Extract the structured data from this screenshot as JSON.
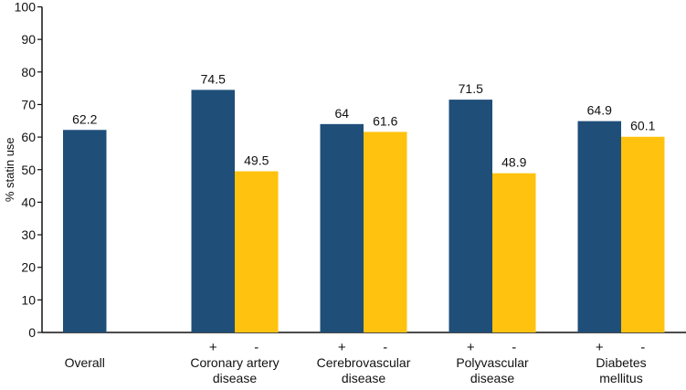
{
  "chart_data": {
    "type": "bar",
    "title": "",
    "xlabel": "",
    "ylabel": "% statin use",
    "ylim": [
      0,
      100
    ],
    "yticks": [
      0,
      10,
      20,
      30,
      40,
      50,
      60,
      70,
      80,
      90,
      100
    ],
    "grid": false,
    "groups": [
      {
        "label": "Overall",
        "bars": [
          {
            "sub": "",
            "value": 62.2,
            "label": "62.2",
            "series": "positive"
          }
        ]
      },
      {
        "label": "Coronary artery disease",
        "bars": [
          {
            "sub": "+",
            "value": 74.5,
            "label": "74.5",
            "series": "positive"
          },
          {
            "sub": "-",
            "value": 49.5,
            "label": "49.5",
            "series": "negative"
          }
        ]
      },
      {
        "label": "Cerebrovascular disease",
        "bars": [
          {
            "sub": "+",
            "value": 64,
            "label": "64",
            "series": "positive"
          },
          {
            "sub": "-",
            "value": 61.6,
            "label": "61.6",
            "series": "negative"
          }
        ]
      },
      {
        "label": "Polyvascular disease",
        "bars": [
          {
            "sub": "+",
            "value": 71.5,
            "label": "71.5",
            "series": "positive"
          },
          {
            "sub": "-",
            "value": 48.9,
            "label": "48.9",
            "series": "negative"
          }
        ]
      },
      {
        "label": "Diabetes mellitus",
        "bars": [
          {
            "sub": "+",
            "value": 64.9,
            "label": "64.9",
            "series": "positive"
          },
          {
            "sub": "-",
            "value": 60.1,
            "label": "60.1",
            "series": "negative"
          }
        ]
      }
    ],
    "group_label_lines": [
      [
        "Overall"
      ],
      [
        "Coronary artery",
        "disease"
      ],
      [
        "Cerebrovascular",
        "disease"
      ],
      [
        "Polyvascular",
        "disease"
      ],
      [
        "Diabetes",
        "mellitus"
      ]
    ],
    "colors": {
      "positive": "#1f4e79",
      "negative": "#ffc20e"
    }
  }
}
